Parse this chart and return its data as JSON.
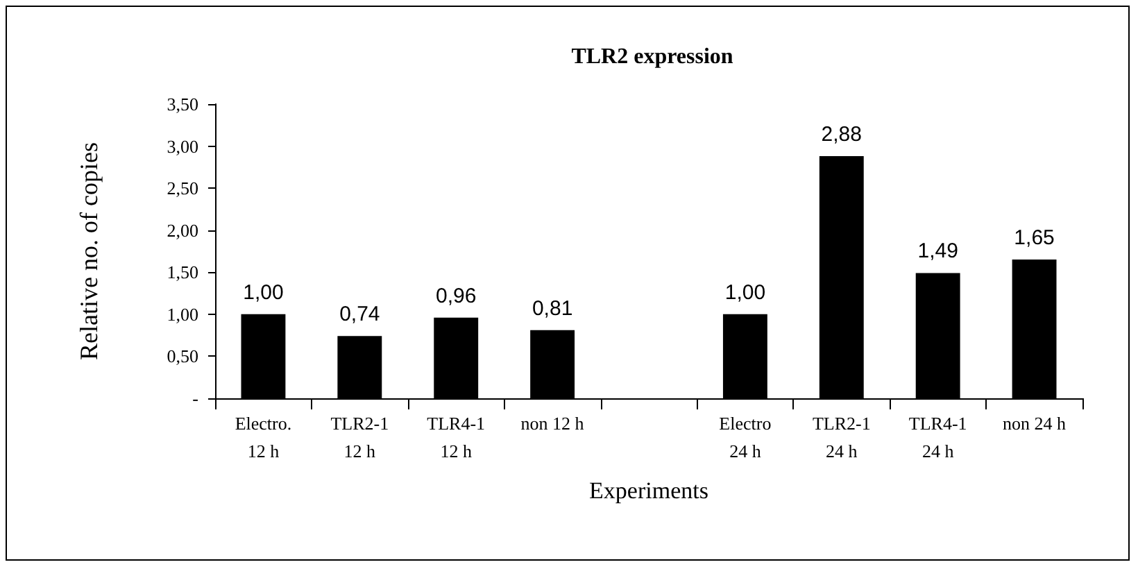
{
  "chart_data": {
    "type": "bar",
    "title": "TLR2 expression",
    "xlabel": "Experiments",
    "ylabel": "Relative no. of copies",
    "categories": [
      "Electro.\n12 h",
      "TLR2-1\n12 h",
      "TLR4-1\n12 h",
      "non 12 h",
      null,
      "Electro\n24 h",
      "TLR2-1\n24 h",
      "TLR4-1\n24 h",
      "non 24 h"
    ],
    "values": [
      1.0,
      0.74,
      0.96,
      0.81,
      null,
      1.0,
      2.88,
      1.49,
      1.65
    ],
    "value_labels": [
      "1,00",
      "0,74",
      "0,96",
      "0,81",
      null,
      "1,00",
      "2,88",
      "1,49",
      "1,65"
    ],
    "color": "#000000",
    "ylim": [
      0,
      3.5
    ],
    "yticks": [
      {
        "value": 0,
        "label": "-"
      },
      {
        "value": 0.5,
        "label": "0,50"
      },
      {
        "value": 1,
        "label": "1,00"
      },
      {
        "value": 1.5,
        "label": "1,50"
      },
      {
        "value": 2,
        "label": "2,00"
      },
      {
        "value": 2.5,
        "label": "2,50"
      },
      {
        "value": 3,
        "label": "3,00"
      },
      {
        "value": 3.5,
        "label": "3,50"
      }
    ],
    "grid": false
  }
}
